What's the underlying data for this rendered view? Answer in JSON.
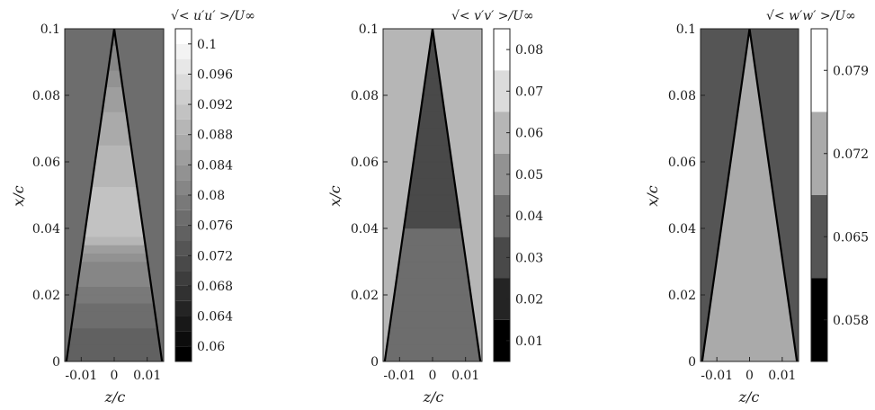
{
  "chart_data": [
    {
      "type": "heatmap",
      "title": "√< u′u′ >/U∞",
      "xlabel": "z/c",
      "ylabel": "x/c",
      "xlim": [
        -0.015,
        0.015
      ],
      "ylim": [
        0,
        0.1
      ],
      "x_ticks": [
        "-0.01",
        "0",
        "0.01"
      ],
      "y_ticks": [
        "0",
        "0.02",
        "0.04",
        "0.06",
        "0.08",
        "0.1"
      ],
      "colorbar_ticks": [
        "0.06",
        "0.064",
        "0.068",
        "0.072",
        "0.076",
        "0.08",
        "0.084",
        "0.088",
        "0.092",
        "0.096",
        "0.1"
      ],
      "levels": [
        0.058,
        0.06,
        0.062,
        0.064,
        0.066,
        0.068,
        0.07,
        0.072,
        0.074,
        0.076,
        0.078,
        0.08,
        0.082,
        0.084,
        0.086,
        0.088,
        0.09,
        0.092,
        0.094,
        0.096,
        0.098,
        0.1,
        0.102
      ],
      "field": [
        {
          "x": 0.003,
          "value": 0.074
        },
        {
          "x": 0.013,
          "value": 0.077
        },
        {
          "x": 0.02,
          "value": 0.079
        },
        {
          "x": 0.03,
          "value": 0.082
        },
        {
          "x": 0.04,
          "value": 0.092
        },
        {
          "x": 0.06,
          "value": 0.089
        },
        {
          "x": 0.08,
          "value": 0.085
        },
        {
          "x": 0.1,
          "value": 0.078
        }
      ],
      "outside_value": 0.077
    },
    {
      "type": "heatmap",
      "title": "√< v′v′ >/U∞",
      "xlabel": "z/c",
      "ylabel": "x/c",
      "xlim": [
        -0.015,
        0.015
      ],
      "ylim": [
        0,
        0.1
      ],
      "x_ticks": [
        "-0.01",
        "0",
        "0.01"
      ],
      "y_ticks": [
        "0",
        "0.02",
        "0.04",
        "0.06",
        "0.08",
        "0.1"
      ],
      "colorbar_ticks": [
        "0.01",
        "0.02",
        "0.03",
        "0.04",
        "0.05",
        "0.06",
        "0.07",
        "0.08"
      ],
      "levels": [
        0.005,
        0.015,
        0.025,
        0.035,
        0.045,
        0.055,
        0.065,
        0.075,
        0.085
      ],
      "field": [
        {
          "x": 0.01,
          "value": 0.043
        },
        {
          "x": 0.03,
          "value": 0.037
        },
        {
          "x": 0.06,
          "value": 0.031
        },
        {
          "x": 0.09,
          "value": 0.033
        }
      ],
      "outside_value": 0.061
    },
    {
      "type": "heatmap",
      "title": "√< w′w′ >/U∞",
      "xlabel": "z/c",
      "ylabel": "x/c",
      "xlim": [
        -0.015,
        0.015
      ],
      "ylim": [
        0,
        0.1
      ],
      "x_ticks": [
        "-0.01",
        "0",
        "0.01"
      ],
      "y_ticks": [
        "0",
        "0.02",
        "0.04",
        "0.06",
        "0.08",
        "0.1"
      ],
      "colorbar_ticks": [
        "0.058",
        "0.065",
        "0.072",
        "0.079"
      ],
      "levels": [
        0.0545,
        0.0615,
        0.0685,
        0.0755,
        0.0825
      ],
      "field": [
        {
          "x": 0.01,
          "value": 0.071
        },
        {
          "x": 0.05,
          "value": 0.071
        },
        {
          "x": 0.09,
          "value": 0.069
        }
      ],
      "outside_value": 0.066
    }
  ]
}
